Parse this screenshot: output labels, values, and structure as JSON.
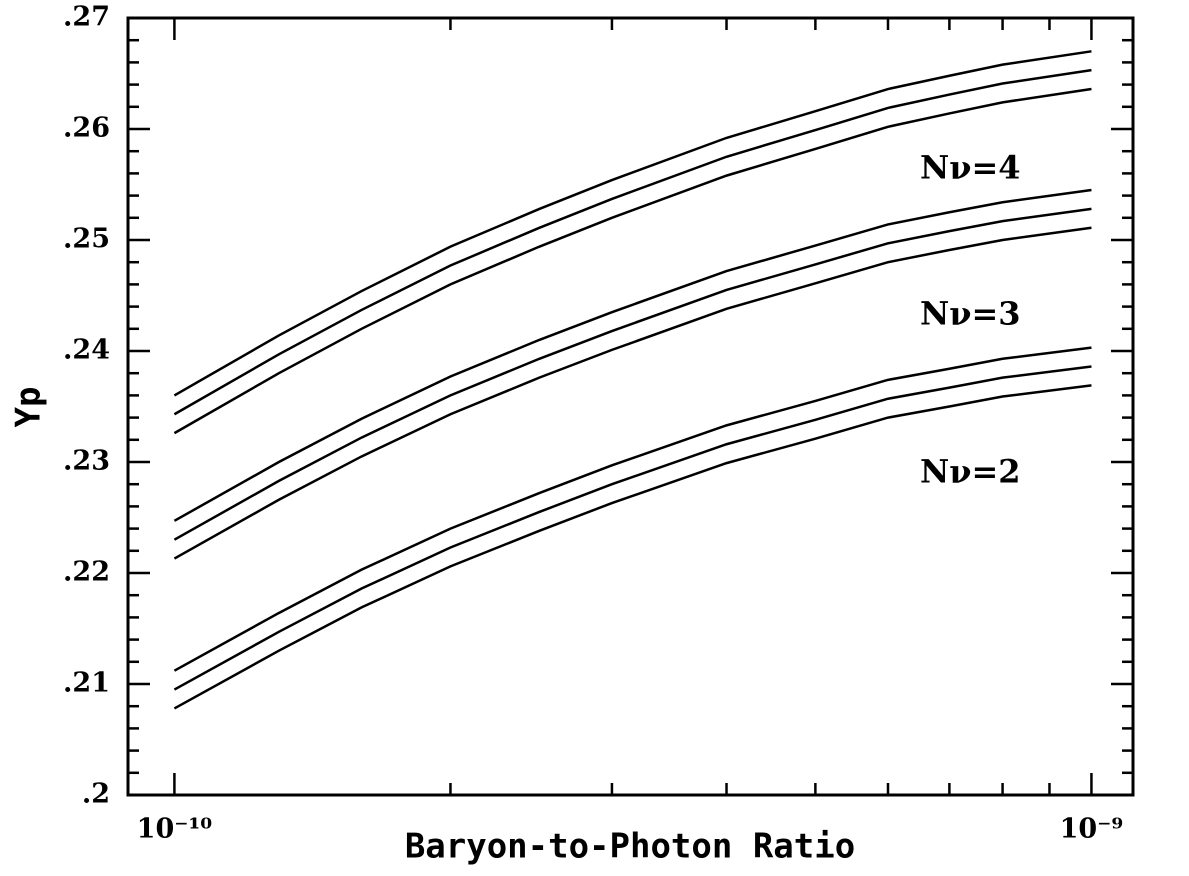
{
  "chart_data": {
    "type": "line",
    "x_label": "Baryon-to-Photon Ratio",
    "y_label": "Yp",
    "log_x": true,
    "color": "#000000",
    "xlim": [
      8.9e-11,
      1.11e-09
    ],
    "ylim": [
      0.2,
      0.27
    ],
    "xticks": [
      {
        "value": 1e-10,
        "label": "10⁻¹⁰"
      },
      {
        "value": 1e-09,
        "label": "10⁻⁹"
      }
    ],
    "xminorticks": [
      2e-10,
      3e-10,
      4e-10,
      5e-10,
      6e-10,
      7e-10,
      8e-10,
      9e-10
    ],
    "yticks": [
      {
        "value": 0.2,
        "label": ".2"
      },
      {
        "value": 0.21,
        "label": ".21"
      },
      {
        "value": 0.22,
        "label": ".22"
      },
      {
        "value": 0.23,
        "label": ".23"
      },
      {
        "value": 0.24,
        "label": ".24"
      },
      {
        "value": 0.25,
        "label": ".25"
      },
      {
        "value": 0.26,
        "label": ".26"
      },
      {
        "value": 0.27,
        "label": ".27"
      }
    ],
    "yminorticks": [
      0.202,
      0.204,
      0.206,
      0.208,
      0.212,
      0.214,
      0.216,
      0.218,
      0.222,
      0.224,
      0.226,
      0.228,
      0.232,
      0.234,
      0.236,
      0.238,
      0.242,
      0.244,
      0.246,
      0.248,
      0.252,
      0.254,
      0.256,
      0.258,
      0.262,
      0.264,
      0.266,
      0.268
    ],
    "x": [
      1e-10,
      1.3e-10,
      1.6e-10,
      2e-10,
      2.5e-10,
      3e-10,
      4e-10,
      5e-10,
      6e-10,
      7e-10,
      8e-10,
      1e-09
    ],
    "series": [
      {
        "values": [
          0.236,
          0.2414,
          0.2454,
          0.2494,
          0.2528,
          0.2554,
          0.2592,
          0.2616,
          0.2636,
          0.2648,
          0.2658,
          0.267
        ]
      },
      {
        "values": [
          0.2343,
          0.2397,
          0.2437,
          0.2477,
          0.2511,
          0.2537,
          0.2575,
          0.2599,
          0.2619,
          0.2631,
          0.2641,
          0.2653
        ]
      },
      {
        "values": [
          0.2326,
          0.238,
          0.242,
          0.246,
          0.2494,
          0.252,
          0.2558,
          0.2582,
          0.2602,
          0.2614,
          0.2624,
          0.2636
        ]
      },
      {
        "values": [
          0.2247,
          0.23,
          0.2339,
          0.2377,
          0.241,
          0.2435,
          0.2472,
          0.2495,
          0.2514,
          0.2525,
          0.2534,
          0.2545
        ]
      },
      {
        "values": [
          0.223,
          0.2283,
          0.2322,
          0.236,
          0.2393,
          0.2418,
          0.2455,
          0.2478,
          0.2497,
          0.2508,
          0.2517,
          0.2528
        ]
      },
      {
        "values": [
          0.2213,
          0.2266,
          0.2305,
          0.2343,
          0.2376,
          0.2401,
          0.2438,
          0.2461,
          0.248,
          0.2491,
          0.25,
          0.2511
        ]
      },
      {
        "values": [
          0.2112,
          0.2164,
          0.2203,
          0.224,
          0.2272,
          0.2297,
          0.2333,
          0.2355,
          0.2374,
          0.2384,
          0.2393,
          0.2403
        ]
      },
      {
        "values": [
          0.2095,
          0.2147,
          0.2186,
          0.2223,
          0.2255,
          0.228,
          0.2316,
          0.2338,
          0.2357,
          0.2367,
          0.2376,
          0.2386
        ]
      },
      {
        "values": [
          0.2078,
          0.213,
          0.2169,
          0.2206,
          0.2238,
          0.2263,
          0.2299,
          0.2321,
          0.234,
          0.235,
          0.2359,
          0.2369
        ]
      }
    ],
    "annotations": [
      "Nν=4",
      "Nν=3",
      "Nν=2"
    ]
  }
}
